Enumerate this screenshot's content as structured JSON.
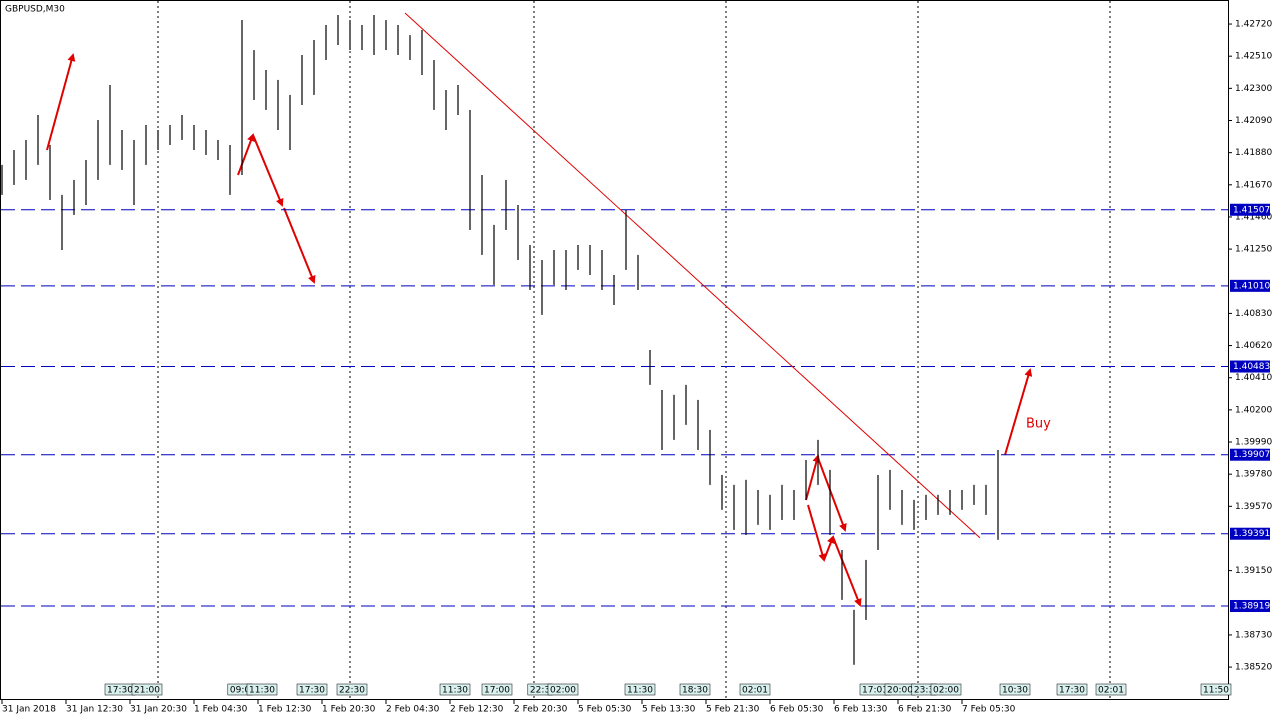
{
  "chart_data": {
    "type": "ohlc",
    "title": "GBPUSD,M30",
    "color": "#000000",
    "x": [
      0,
      3,
      6,
      9,
      12,
      15,
      18,
      21,
      24,
      27,
      30,
      33,
      36,
      39,
      42,
      45,
      48,
      51,
      54,
      57,
      60,
      63,
      66,
      69,
      72,
      75,
      78,
      81,
      84,
      87,
      90,
      93,
      96,
      99,
      102,
      105,
      108,
      111,
      114,
      117,
      120,
      123,
      126,
      129,
      132,
      135,
      138,
      141,
      144,
      147,
      150,
      153,
      156,
      159,
      162,
      165,
      168,
      171,
      174,
      177,
      180,
      183,
      186,
      189,
      192,
      195,
      198,
      201,
      204,
      207,
      210,
      213,
      216,
      219,
      222,
      225,
      228,
      231,
      234,
      237,
      240,
      243,
      246,
      249
    ],
    "high": [
      1.418,
      1.41897,
      1.41963,
      1.42126,
      1.4193,
      1.41604,
      1.41702,
      1.41832,
      1.42093,
      1.42322,
      1.42028,
      1.41963,
      1.42061,
      1.42028,
      1.42061,
      1.42126,
      1.42061,
      1.42028,
      1.41963,
      1.4193,
      1.42746,
      1.4255,
      1.4242,
      1.42355,
      1.42257,
      1.42518,
      1.42616,
      1.42714,
      1.42779,
      1.42746,
      1.42714,
      1.42779,
      1.42746,
      1.42714,
      1.42648,
      1.42681,
      1.42485,
      1.42289,
      1.42322,
      1.42159,
      1.41734,
      1.41408,
      1.41702,
      1.41538,
      1.41277,
      1.41179,
      1.41244,
      1.41244,
      1.41277,
      1.41277,
      1.41244,
      1.41081,
      1.41506,
      1.41212,
      1.40591,
      1.4033,
      1.40298,
      1.40363,
      1.40265,
      1.40069,
      1.39775,
      1.3971,
      1.39743,
      1.39677,
      1.39645,
      1.3971,
      1.39677,
      1.39873,
      1.40004,
      1.39808,
      1.39285,
      1.38894,
      1.3922,
      1.39775,
      1.39808,
      1.39677,
      1.39612,
      1.39645,
      1.39645,
      1.39677,
      1.39677,
      1.3971,
      1.3971,
      1.39938
    ],
    "low": [
      1.41604,
      1.41669,
      1.41702,
      1.418,
      1.41571,
      1.41244,
      1.41473,
      1.41538,
      1.41702,
      1.418,
      1.41767,
      1.41538,
      1.418,
      1.41897,
      1.4193,
      1.41963,
      1.41897,
      1.41865,
      1.41832,
      1.41604,
      1.41734,
      1.42224,
      1.42159,
      1.42028,
      1.41897,
      1.42191,
      1.42257,
      1.42485,
      1.42583,
      1.4255,
      1.4255,
      1.42518,
      1.4255,
      1.42518,
      1.42485,
      1.42387,
      1.42159,
      1.42028,
      1.42126,
      1.41375,
      1.41212,
      1.41016,
      1.41375,
      1.41179,
      1.40983,
      1.4082,
      1.41016,
      1.40983,
      1.41114,
      1.41081,
      1.40983,
      1.40885,
      1.41114,
      1.40983,
      1.40363,
      1.39938,
      1.40004,
      1.40102,
      1.39938,
      1.3971,
      1.39547,
      1.39416,
      1.39383,
      1.39449,
      1.39416,
      1.39481,
      1.39481,
      1.39612,
      1.3971,
      1.39383,
      1.38959,
      1.38535,
      1.38828,
      1.39285,
      1.39547,
      1.39449,
      1.39416,
      1.39481,
      1.39514,
      1.39514,
      1.39547,
      1.39579,
      1.39514,
      1.39351
    ],
    "xlim": [
      0,
      307
    ],
    "ylim": [
      1.38305,
      1.42877
    ],
    "yticks": [
      {
        "value": 1.4272,
        "label": "1.42720"
      },
      {
        "value": 1.4251,
        "label": "1.42510"
      },
      {
        "value": 1.423,
        "label": "1.42300"
      },
      {
        "value": 1.4209,
        "label": "1.42090"
      },
      {
        "value": 1.4188,
        "label": "1.41880"
      },
      {
        "value": 1.4167,
        "label": "1.41670"
      },
      {
        "value": 1.4146,
        "label": "1.41460"
      },
      {
        "value": 1.4125,
        "label": "1.41250"
      },
      {
        "value": 1.4083,
        "label": "1.40830"
      },
      {
        "value": 1.4062,
        "label": "1.40620"
      },
      {
        "value": 1.4041,
        "label": "1.40410"
      },
      {
        "value": 1.402,
        "label": "1.40200"
      },
      {
        "value": 1.3999,
        "label": "1.39990"
      },
      {
        "value": 1.3978,
        "label": "1.39780"
      },
      {
        "value": 1.3957,
        "label": "1.39570"
      },
      {
        "value": 1.3915,
        "label": "1.39150"
      },
      {
        "value": 1.3873,
        "label": "1.38730"
      },
      {
        "value": 1.3852,
        "label": "1.38520"
      }
    ],
    "xticks": [
      {
        "value": 0,
        "label": "31 Jan 2018"
      },
      {
        "value": 16,
        "label": "31 Jan 12:30"
      },
      {
        "value": 32,
        "label": "31 Jan 20:30"
      },
      {
        "value": 48,
        "label": "1 Feb 04:30"
      },
      {
        "value": 64,
        "label": "1 Feb 12:30"
      },
      {
        "value": 80,
        "label": "1 Feb 20:30"
      },
      {
        "value": 96,
        "label": "2 Feb 04:30"
      },
      {
        "value": 112,
        "label": "2 Feb 12:30"
      },
      {
        "value": 128,
        "label": "2 Feb 20:30"
      },
      {
        "value": 144,
        "label": "5 Feb 05:30"
      },
      {
        "value": 160,
        "label": "5 Feb 13:30"
      },
      {
        "value": 176,
        "label": "5 Feb 21:30"
      },
      {
        "value": 192,
        "label": "6 Feb 05:30"
      },
      {
        "value": 208,
        "label": "6 Feb 13:30"
      },
      {
        "value": 224,
        "label": "6 Feb 21:30"
      },
      {
        "value": 240,
        "label": "7 Feb 05:30"
      }
    ],
    "levels_color": "#0000c0",
    "levels": [
      {
        "value": 1.41507,
        "label": "1.41507"
      },
      {
        "value": 1.4101,
        "label": "1.41010"
      },
      {
        "value": 1.40483,
        "label": "1.40483"
      },
      {
        "value": 1.39907,
        "label": "1.39907"
      },
      {
        "value": 1.39391,
        "label": "1.39391"
      },
      {
        "value": 1.38919,
        "label": "1.38919"
      }
    ],
    "trendline": {
      "color": "#e00000",
      "x": [
        100.75,
        244.5
      ],
      "y": [
        1.42792,
        1.39364
      ]
    },
    "time_markers": [
      {
        "value": 29.5,
        "label": "17:30"
      },
      {
        "value": 36.25,
        "label": "21:00"
      },
      {
        "value": 59.5,
        "label": "09:0"
      },
      {
        "value": 65,
        "label": "11:30"
      },
      {
        "value": 77.5,
        "label": "17:30"
      },
      {
        "value": 87.5,
        "label": "22:30"
      },
      {
        "value": 113.25,
        "label": "11:30"
      },
      {
        "value": 123.75,
        "label": "17:00"
      },
      {
        "value": 134.5,
        "label": "22:3"
      },
      {
        "value": 140.25,
        "label": "02:00"
      },
      {
        "value": 159.5,
        "label": "11:30"
      },
      {
        "value": 173.25,
        "label": "18:30"
      },
      {
        "value": 188.25,
        "label": "02:01"
      },
      {
        "value": 218.25,
        "label": "17:01"
      },
      {
        "value": 224.5,
        "label": "20:00"
      },
      {
        "value": 230.5,
        "label": "23:3"
      },
      {
        "value": 236,
        "label": "02:00"
      },
      {
        "value": 253.25,
        "label": "10:30"
      },
      {
        "value": 267.5,
        "label": "17:30"
      },
      {
        "value": 277.25,
        "label": "02:01"
      },
      {
        "value": 303.5,
        "label": "11:50"
      }
    ],
    "annotation": "Buy"
  }
}
